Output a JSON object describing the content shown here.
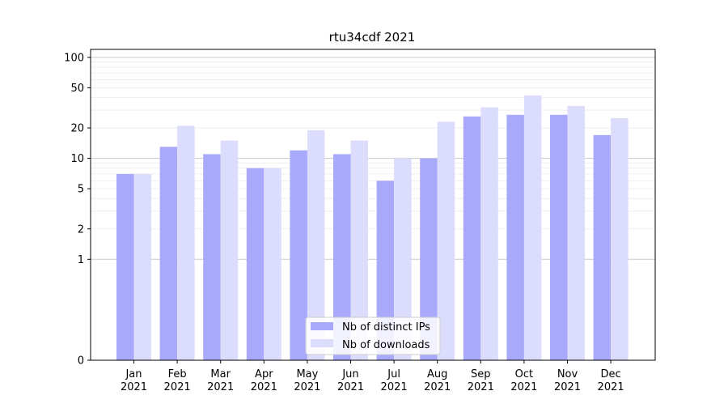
{
  "chart_data": {
    "type": "bar",
    "title": "rtu34cdf 2021",
    "xlabel": "",
    "ylabel": "",
    "y_scale": "symlog",
    "ylim": [
      0,
      120
    ],
    "y_ticks": [
      0,
      1,
      2,
      5,
      10,
      20,
      50,
      100
    ],
    "grid": true,
    "legend_position": "lower-center",
    "categories": [
      [
        "Jan",
        "2021"
      ],
      [
        "Feb",
        "2021"
      ],
      [
        "Mar",
        "2021"
      ],
      [
        "Apr",
        "2021"
      ],
      [
        "May",
        "2021"
      ],
      [
        "Jun",
        "2021"
      ],
      [
        "Jul",
        "2021"
      ],
      [
        "Aug",
        "2021"
      ],
      [
        "Sep",
        "2021"
      ],
      [
        "Oct",
        "2021"
      ],
      [
        "Nov",
        "2021"
      ],
      [
        "Dec",
        "2021"
      ]
    ],
    "series": [
      {
        "name": "Nb of distinct IPs",
        "color": "#a9a9fb",
        "values": [
          7,
          13,
          11,
          8,
          12,
          11,
          6,
          10,
          26,
          27,
          27,
          17
        ]
      },
      {
        "name": "Nb of downloads",
        "color": "#dcdcfd",
        "values": [
          7,
          21,
          15,
          8,
          19,
          15,
          10,
          23,
          32,
          42,
          33,
          25
        ]
      }
    ]
  }
}
